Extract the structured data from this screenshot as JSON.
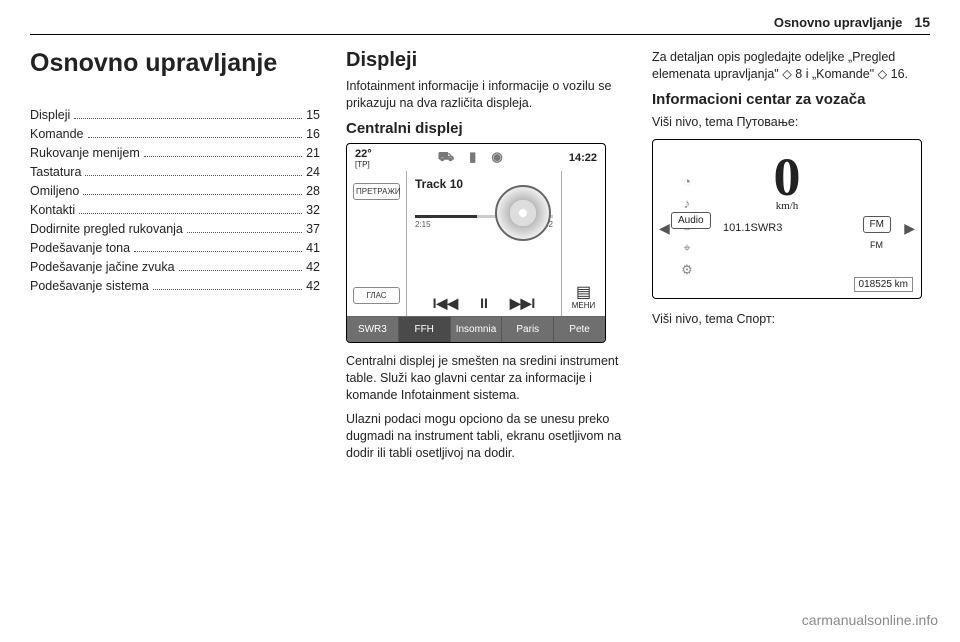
{
  "header": {
    "section": "Osnovno upravljanje",
    "page": "15"
  },
  "col1": {
    "title": "Osnovno upravljanje",
    "toc": [
      {
        "label": "Displeji",
        "page": "15"
      },
      {
        "label": "Komande",
        "page": "16"
      },
      {
        "label": "Rukovanje menijem",
        "page": "21"
      },
      {
        "label": "Tastatura",
        "page": "24"
      },
      {
        "label": "Omiljeno",
        "page": "28"
      },
      {
        "label": "Kontakti",
        "page": "32"
      },
      {
        "label": "Dodirnite pregled rukovanja",
        "page": "37"
      },
      {
        "label": "Podešavanje tona",
        "page": "41"
      },
      {
        "label": "Podešavanje jačine zvuka",
        "page": "42"
      },
      {
        "label": "Podešavanje sistema",
        "page": "42"
      }
    ]
  },
  "col2": {
    "heading": "Displeji",
    "intro": "Infotainment informacije i informacije o vozilu se prikazuju na dva različita displeja.",
    "subheading": "Centralni displej",
    "info": {
      "temp": "22°",
      "tp": "[TP]",
      "time": "14:22",
      "btn_search": "ПРЕТРАЖИ",
      "btn_voice": "ГЛАС",
      "track": "Track 10",
      "t_elapsed": "2:15",
      "t_total": "4:52",
      "menu": "МЕНИ",
      "presets": [
        "SWR3",
        "FFH",
        "Insomnia",
        "Paris",
        "Pete"
      ]
    },
    "para1": "Centralni displej je smešten na sredini instrument table. Služi kao glavni centar za informacije i komande Infotainment sistema.",
    "para2": "Ulazni podaci mogu opciono da se unesu preko dugmadi na instrument tabli, ekranu osetljivom na dodir ili tabli osetljivoj na dodir."
  },
  "col3": {
    "para_top": "Za detaljan opis pogledajte odeljke „Pregled elemenata upravljanja\" ◇ 8 i „Komande\" ◇ 16.",
    "heading": "Informacioni centar za vozača",
    "line1": "Viši nivo, tema Путовање:",
    "cluster": {
      "speed": "0",
      "unit": "km/h",
      "audio_label": "Audio",
      "station": "101.1SWR3",
      "fm_big": "FM",
      "fm_small": "FM",
      "odo": "018525 km"
    },
    "line2": "Viši nivo, tema Спорт:"
  },
  "watermark": "carmanualsonline.info"
}
